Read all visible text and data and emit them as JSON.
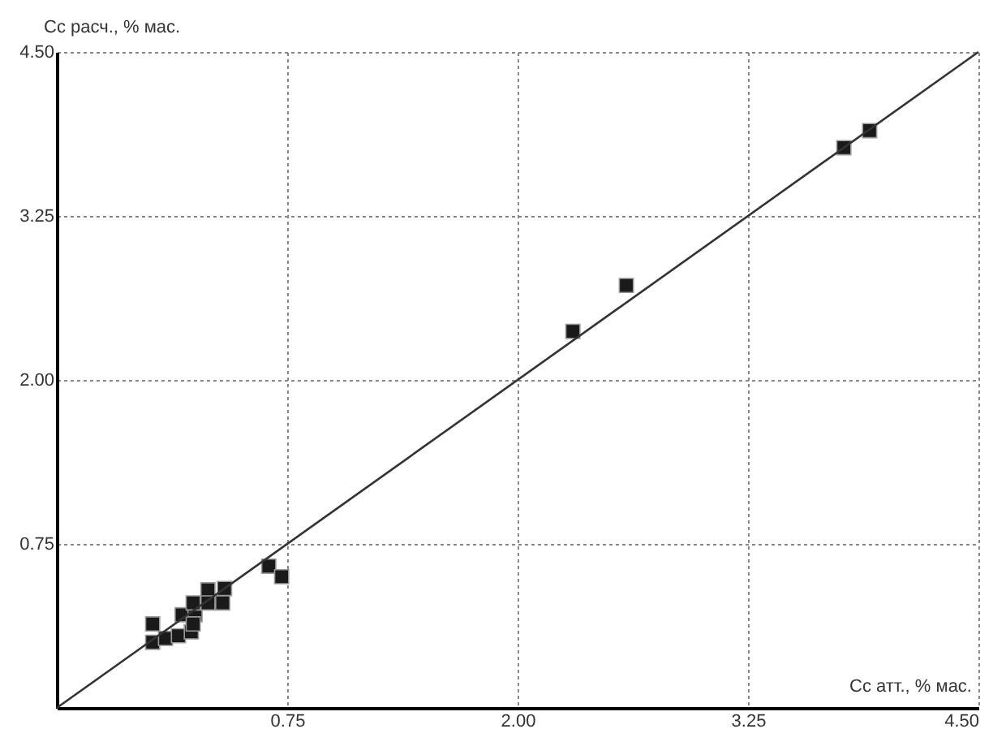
{
  "chart_data": {
    "type": "scatter",
    "xlabel": "Cc  атт., % мас.",
    "ylabel": "Cc расч., % мас.",
    "series": [
      {
        "type": "scatter",
        "color": "#1a1a1a",
        "marker": "square",
        "x": [
          0.02,
          0.02,
          0.09,
          0.16,
          0.23,
          0.18,
          0.25,
          0.24,
          0.24,
          0.32,
          0.32,
          0.41,
          0.4,
          0.65,
          0.72,
          2.3,
          2.59,
          3.77,
          3.91
        ],
        "values": [
          0.14,
          0.0,
          0.03,
          0.05,
          0.08,
          0.21,
          0.21,
          0.3,
          0.14,
          0.4,
          0.3,
          0.41,
          0.3,
          0.58,
          0.5,
          2.37,
          2.72,
          3.77,
          3.9
        ]
      },
      {
        "type": "line",
        "color": "#333333",
        "marker": "none",
        "line_style": "solid",
        "x": [
          -0.5,
          4.5
        ],
        "values": [
          -0.5,
          4.5
        ]
      }
    ],
    "xlim": [
      -0.5,
      4.5
    ],
    "ylim": [
      -0.5,
      4.5
    ],
    "xticks": [
      {
        "value": 0.75,
        "label": "0.75"
      },
      {
        "value": 2,
        "label": "2.00"
      },
      {
        "value": 3.25,
        "label": "3.25"
      },
      {
        "value": 4.5,
        "label": "4.50"
      }
    ],
    "yticks": [
      {
        "value": 0.75,
        "label": "0.75"
      },
      {
        "value": 2,
        "label": "2.00"
      },
      {
        "value": 3.25,
        "label": "3.25"
      },
      {
        "value": 4.5,
        "label": "4.50"
      }
    ],
    "grid": true
  }
}
